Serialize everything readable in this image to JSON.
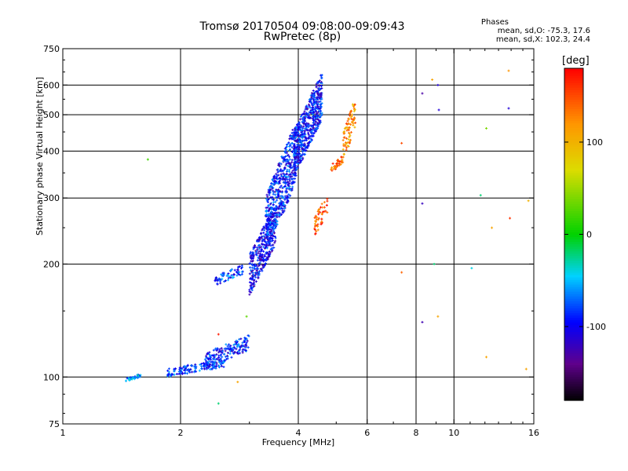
{
  "title": "Tromsø 20170504 09:08:00-09:09:43",
  "subtitle": "RwPretec (8p)",
  "phases": {
    "header": "Phases",
    "o_stats": "mean, sd,O: -75.3, 17.6",
    "x_stats": "mean, sd,X: 102.3, 24.4"
  },
  "chart_data": {
    "type": "scatter",
    "xlabel": "Frequency [MHz]",
    "ylabel": "Stationary phase Virtual Height [km]",
    "x_scale": "log",
    "y_scale": "log",
    "xlim": [
      1,
      16
    ],
    "ylim": [
      75,
      750
    ],
    "x_ticks": [
      1,
      2,
      4,
      6,
      8,
      10,
      16
    ],
    "x_tick_labels": [
      "1",
      "2",
      "4",
      "6",
      "8",
      "10",
      "16"
    ],
    "x_gridlines": [
      2,
      4,
      6,
      8,
      10
    ],
    "y_ticks": [
      75,
      100,
      200,
      300,
      400,
      500,
      600,
      750
    ],
    "y_tick_labels": [
      "75",
      "100",
      "200",
      "300",
      "400",
      "500",
      "600",
      "750"
    ],
    "y_gridlines": [
      100,
      200,
      300,
      400,
      500,
      600
    ],
    "grid": true,
    "colorbar": {
      "label": "[deg]",
      "range": [
        -180,
        180
      ],
      "ticks": [
        100,
        0,
        -100
      ],
      "tick_labels": [
        "100",
        "0",
        "-100"
      ],
      "colormap": "rainbow (black → purple → blue → cyan → green → yellow → orange → red)"
    },
    "clusters": [
      {
        "x_range": [
          1.45,
          1.58
        ],
        "y_range": [
          97,
          102
        ],
        "phase": -60,
        "n": 40
      },
      {
        "x_range": [
          1.85,
          2.6
        ],
        "y_range": [
          100,
          112
        ],
        "phase": -80,
        "n": 150
      },
      {
        "x_range": [
          2.3,
          3.0
        ],
        "y_range": [
          105,
          130
        ],
        "phase": -90,
        "n": 160
      },
      {
        "x_range": [
          2.45,
          2.9
        ],
        "y_range": [
          175,
          200
        ],
        "phase": -80,
        "n": 70
      },
      {
        "x_range": [
          3.0,
          3.5
        ],
        "y_range": [
          165,
          290
        ],
        "phase": -100,
        "n": 350
      },
      {
        "x_range": [
          3.3,
          3.95
        ],
        "y_range": [
          210,
          480
        ],
        "phase": -90,
        "n": 500
      },
      {
        "x_range": [
          3.9,
          4.6
        ],
        "y_range": [
          340,
          650
        ],
        "phase": -95,
        "n": 550
      },
      {
        "x_range": [
          4.4,
          4.75
        ],
        "y_range": [
          235,
          310
        ],
        "phase": 150,
        "n": 50
      },
      {
        "x_range": [
          4.85,
          5.2
        ],
        "y_range": [
          350,
          390
        ],
        "phase": 140,
        "n": 40
      },
      {
        "x_range": [
          5.2,
          5.6
        ],
        "y_range": [
          370,
          560
        ],
        "phase": 120,
        "n": 80
      }
    ],
    "outliers": [
      {
        "x": 1.65,
        "y": 380,
        "phase": 20
      },
      {
        "x": 2.5,
        "y": 130,
        "phase": 170
      },
      {
        "x": 2.5,
        "y": 85,
        "phase": -20
      },
      {
        "x": 2.95,
        "y": 145,
        "phase": 30
      },
      {
        "x": 2.8,
        "y": 97,
        "phase": 110
      },
      {
        "x": 7.35,
        "y": 420,
        "phase": 150
      },
      {
        "x": 7.35,
        "y": 190,
        "phase": 140
      },
      {
        "x": 8.3,
        "y": 570,
        "phase": -130
      },
      {
        "x": 8.3,
        "y": 290,
        "phase": -120
      },
      {
        "x": 8.3,
        "y": 140,
        "phase": -125
      },
      {
        "x": 8.8,
        "y": 620,
        "phase": 110
      },
      {
        "x": 8.9,
        "y": 200,
        "phase": -20
      },
      {
        "x": 9.1,
        "y": 600,
        "phase": -110
      },
      {
        "x": 9.15,
        "y": 515,
        "phase": -110
      },
      {
        "x": 9.1,
        "y": 145,
        "phase": 110
      },
      {
        "x": 11.1,
        "y": 195,
        "phase": -40
      },
      {
        "x": 11.7,
        "y": 305,
        "phase": -20
      },
      {
        "x": 12.1,
        "y": 460,
        "phase": 40
      },
      {
        "x": 12.1,
        "y": 113,
        "phase": 110
      },
      {
        "x": 12.5,
        "y": 250,
        "phase": 110
      },
      {
        "x": 13.8,
        "y": 655,
        "phase": 120
      },
      {
        "x": 13.8,
        "y": 520,
        "phase": -110
      },
      {
        "x": 13.9,
        "y": 265,
        "phase": 160
      },
      {
        "x": 15.3,
        "y": 105,
        "phase": 110
      },
      {
        "x": 15.5,
        "y": 295,
        "phase": 100
      }
    ]
  }
}
